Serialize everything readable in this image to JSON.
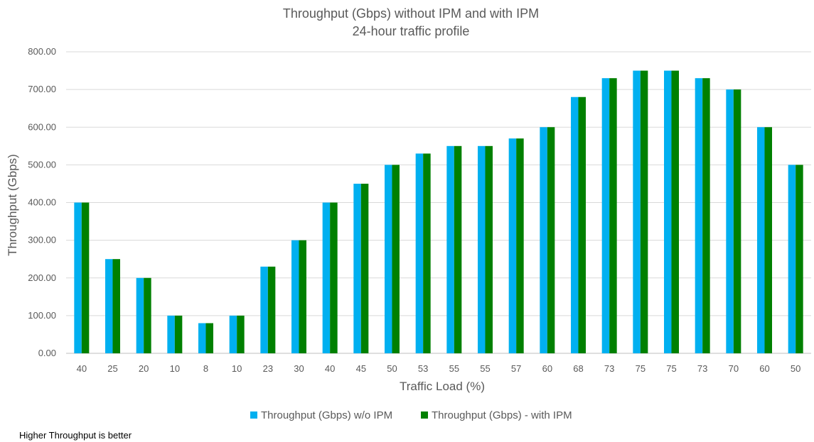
{
  "chart_data": {
    "type": "bar",
    "title": "Throughput (Gbps) without IPM and with IPM",
    "subtitle": "24-hour traffic profile",
    "xlabel": "Traffic Load (%)",
    "ylabel": "Throughput (Gbps)",
    "ylim": [
      0,
      800
    ],
    "yticks": [
      "0.00",
      "100.00",
      "200.00",
      "300.00",
      "400.00",
      "500.00",
      "600.00",
      "700.00",
      "800.00"
    ],
    "categories": [
      "40",
      "25",
      "20",
      "10",
      "8",
      "10",
      "23",
      "30",
      "40",
      "45",
      "50",
      "53",
      "55",
      "55",
      "57",
      "60",
      "68",
      "73",
      "75",
      "75",
      "73",
      "70",
      "60",
      "50"
    ],
    "series": [
      {
        "name": "Throughput (Gbps) w/o IPM",
        "color": "#00B0F0",
        "values": [
          400,
          250,
          200,
          100,
          80,
          100,
          230,
          300,
          400,
          450,
          500,
          530,
          550,
          550,
          570,
          600,
          680,
          730,
          750,
          750,
          730,
          700,
          600,
          500
        ]
      },
      {
        "name": "Throughput (Gbps) - with IPM",
        "color": "#008000",
        "values": [
          400,
          250,
          200,
          100,
          80,
          100,
          230,
          300,
          400,
          450,
          500,
          530,
          550,
          550,
          570,
          600,
          680,
          730,
          750,
          750,
          730,
          700,
          600,
          500
        ]
      }
    ],
    "grid": true,
    "legend": "bottom"
  },
  "footnote": "Higher Throughput is better"
}
